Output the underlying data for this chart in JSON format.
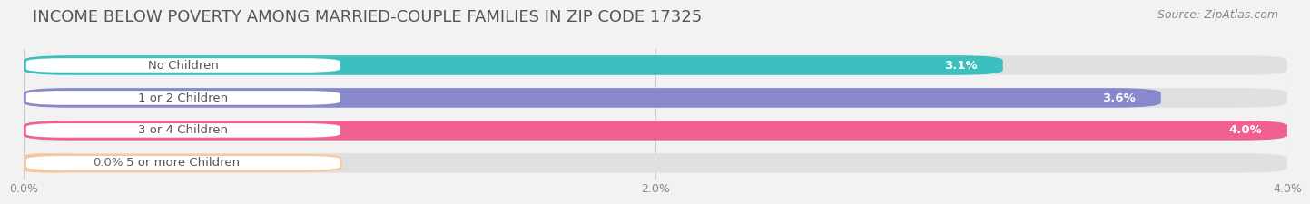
{
  "title": "INCOME BELOW POVERTY AMONG MARRIED-COUPLE FAMILIES IN ZIP CODE 17325",
  "source": "Source: ZipAtlas.com",
  "categories": [
    "No Children",
    "1 or 2 Children",
    "3 or 4 Children",
    "5 or more Children"
  ],
  "values": [
    3.1,
    3.6,
    4.0,
    0.0
  ],
  "value_labels": [
    "3.1%",
    "3.6%",
    "4.0%",
    "0.0%"
  ],
  "bar_colors": [
    "#3bbfbf",
    "#8888cc",
    "#f06090",
    "#f5c8a0"
  ],
  "background_color": "#f2f2f2",
  "bar_bg_color": "#e0e0e0",
  "xlim_max": 4.0,
  "xticks": [
    0.0,
    2.0,
    4.0
  ],
  "xticklabels": [
    "0.0%",
    "2.0%",
    "4.0%"
  ],
  "title_fontsize": 13,
  "source_fontsize": 9,
  "label_fontsize": 9.5,
  "value_fontsize": 9.5
}
